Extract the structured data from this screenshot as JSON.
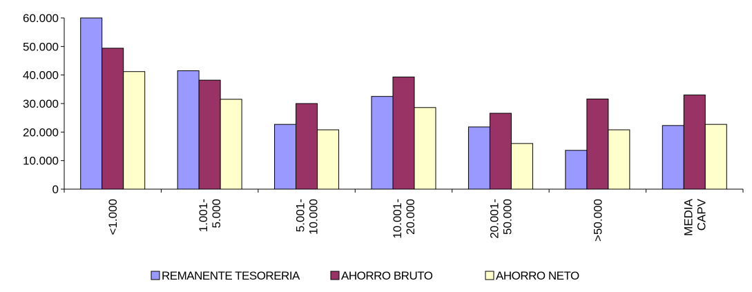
{
  "chart_data": {
    "type": "bar",
    "title": "",
    "xlabel": "",
    "ylabel": "",
    "ylim": [
      0,
      60000
    ],
    "yticks": [
      0,
      10000,
      20000,
      30000,
      40000,
      50000,
      60000
    ],
    "ytick_labels": [
      "0",
      "10.000",
      "20.000",
      "30.000",
      "40.000",
      "50.000",
      "60.000"
    ],
    "grid": false,
    "legend_position": "bottom",
    "categories": [
      [
        "<1.000"
      ],
      [
        "1.001-",
        "5.000"
      ],
      [
        "5.001-",
        "10.000"
      ],
      [
        "10.001-",
        "20.000"
      ],
      [
        "20.001-",
        "50.000"
      ],
      [
        ">50.000"
      ],
      [
        "MEDIA",
        "CAPV"
      ]
    ],
    "series": [
      {
        "name": "REMANENTE TESORERIA",
        "color": "#9999ff",
        "values": [
          60000,
          41500,
          22700,
          32500,
          21800,
          13600,
          22300
        ]
      },
      {
        "name": "AHORRO BRUTO",
        "color": "#993366",
        "values": [
          49400,
          38200,
          30000,
          39300,
          26600,
          31600,
          33000
        ]
      },
      {
        "name": "AHORRO NETO",
        "color": "#ffffcc",
        "values": [
          41200,
          31500,
          20800,
          28600,
          16000,
          20800,
          22700
        ]
      }
    ]
  }
}
